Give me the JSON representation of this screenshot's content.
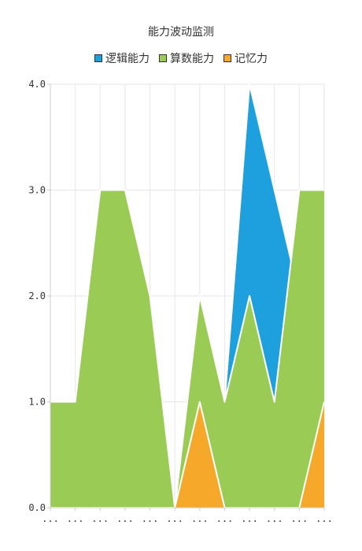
{
  "chart_data": {
    "type": "area",
    "title": "能力波动监测",
    "categories": [
      "...",
      "...",
      "...",
      "...",
      "...",
      "...",
      "...",
      "...",
      "...",
      "...",
      "...",
      "..."
    ],
    "y_tick_labels": [
      "0.0",
      "1.0",
      "2.0",
      "3.0",
      "4.0"
    ],
    "ylim": [
      0,
      4
    ],
    "grid": true,
    "legend_position": "top-center",
    "stacked": false,
    "series": [
      {
        "name": "逻辑能力",
        "color": "#1fa0de",
        "values": [
          1,
          1,
          3,
          3,
          2,
          0,
          2,
          1,
          4,
          3,
          2,
          3
        ]
      },
      {
        "name": "算数能力",
        "color": "#9acb54",
        "values": [
          1,
          1,
          3,
          3,
          2,
          0,
          2,
          1,
          2,
          1,
          3,
          3
        ]
      },
      {
        "name": "记忆力",
        "color": "#f5a829",
        "values": [
          0,
          0,
          0,
          0,
          0,
          0,
          1,
          0,
          0,
          0,
          0,
          1
        ]
      }
    ]
  }
}
